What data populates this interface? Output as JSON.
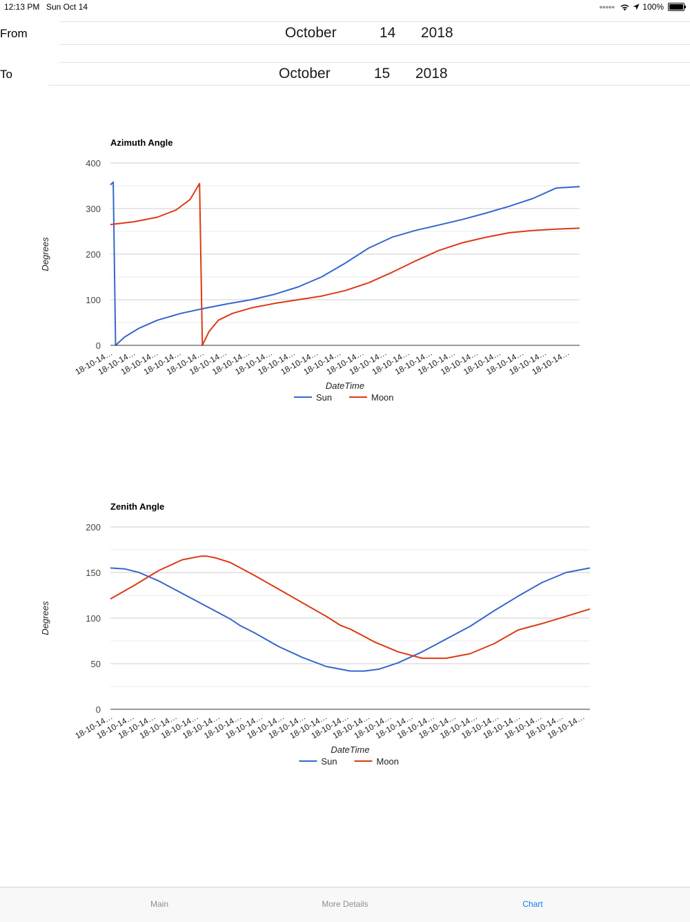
{
  "status_bar": {
    "time": "12:13 PM",
    "date": "Sun Oct 14",
    "battery": "100%",
    "icons": [
      "signal-icon",
      "wifi-icon",
      "location-arrow-icon",
      "battery-icon"
    ]
  },
  "date_range": {
    "from": {
      "label": "From",
      "month": "October",
      "day": "14",
      "year": "2018"
    },
    "to": {
      "label": "To",
      "month": "October",
      "day": "15",
      "year": "2018"
    }
  },
  "colors": {
    "sun": "#3366cc",
    "moon": "#dc3912",
    "tab_active": "#0a7aff",
    "tab_inactive": "#8e8e93"
  },
  "chart_data": [
    {
      "type": "line",
      "title": "Azimuth Angle",
      "xlabel": "DateTime",
      "ylabel": "Degrees",
      "ylim": [
        0,
        400
      ],
      "yticks": [
        0,
        100,
        200,
        300,
        400
      ],
      "grid": true,
      "legend": "bottom",
      "x_tick_labels": [
        "18-10-14…",
        "18-10-14…",
        "18-10-14…",
        "18-10-14…",
        "18-10-14…",
        "18-10-14…",
        "18-10-14…",
        "18-10-14…",
        "18-10-14…",
        "18-10-14…",
        "18-10-14…",
        "18-10-14…",
        "18-10-14…",
        "18-10-14…",
        "18-10-14…",
        "18-10-14…",
        "18-10-14…",
        "18-10-14…",
        "18-10-14…",
        "18-10-14…",
        "18-10-14…"
      ],
      "x_range": [
        0,
        100
      ],
      "series": [
        {
          "name": "Sun",
          "x": [
            0,
            0.6,
            1.1,
            3,
            6,
            10,
            15,
            20,
            25,
            30,
            35,
            40,
            45,
            50,
            55,
            60,
            65,
            70,
            75,
            80,
            85,
            90,
            95,
            100
          ],
          "y": [
            352,
            358,
            0,
            18,
            37,
            55,
            70,
            81,
            91,
            100,
            112,
            128,
            150,
            180,
            213,
            237,
            252,
            264,
            276,
            290,
            305,
            322,
            345,
            348
          ]
        },
        {
          "name": "Moon",
          "x": [
            0,
            5,
            10,
            14,
            17,
            19,
            19.3,
            19.6,
            21,
            23,
            26,
            30,
            35,
            40,
            45,
            50,
            55,
            60,
            65,
            70,
            75,
            80,
            85,
            90,
            95,
            100
          ],
          "y": [
            265,
            271,
            281,
            297,
            320,
            355,
            180,
            0,
            30,
            55,
            70,
            82,
            92,
            100,
            108,
            120,
            137,
            160,
            185,
            208,
            225,
            237,
            247,
            252,
            255,
            257
          ]
        }
      ]
    },
    {
      "type": "line",
      "title": "Zenith Angle",
      "xlabel": "DateTime",
      "ylabel": "Degrees",
      "ylim": [
        0,
        200
      ],
      "yticks": [
        0,
        50,
        100,
        150,
        200
      ],
      "grid": true,
      "legend": "bottom",
      "x_tick_labels": [
        "18-10-14…",
        "18-10-14…",
        "18-10-14…",
        "18-10-14…",
        "18-10-14…",
        "18-10-14…",
        "18-10-14…",
        "18-10-14…",
        "18-10-14…",
        "18-10-14…",
        "18-10-14…",
        "18-10-14…",
        "18-10-14…",
        "18-10-14…",
        "18-10-14…",
        "18-10-14…",
        "18-10-14…",
        "18-10-14…",
        "18-10-14…",
        "18-10-14…",
        "18-10-14…",
        "18-10-14…",
        "18-10-14…"
      ],
      "x_range": [
        0,
        100
      ],
      "series": [
        {
          "name": "Sun",
          "x": [
            0,
            3,
            6,
            10,
            15,
            20,
            25,
            27,
            30,
            35,
            40,
            45,
            50,
            53,
            56,
            60,
            65,
            70,
            75,
            80,
            85,
            90,
            95,
            100
          ],
          "y": [
            155,
            154,
            150,
            141,
            127,
            113,
            99,
            92,
            84,
            69,
            57,
            47,
            42,
            42,
            44,
            51,
            63,
            77,
            91,
            108,
            124,
            139,
            150,
            155
          ]
        },
        {
          "name": "Moon",
          "x": [
            0,
            5,
            10,
            15,
            19,
            20,
            22,
            25,
            30,
            35,
            40,
            45,
            48,
            50,
            55,
            60,
            65,
            70,
            75,
            80,
            85,
            90,
            95,
            100
          ],
          "y": [
            121,
            136,
            152,
            164,
            168,
            168,
            166,
            161,
            147,
            132,
            117,
            102,
            92,
            88,
            74,
            63,
            56,
            56,
            61,
            72,
            87,
            94,
            102,
            110
          ]
        }
      ]
    }
  ],
  "tabs": [
    {
      "label": "Main",
      "active": false
    },
    {
      "label": "More Details",
      "active": false
    },
    {
      "label": "Chart",
      "active": true
    }
  ]
}
